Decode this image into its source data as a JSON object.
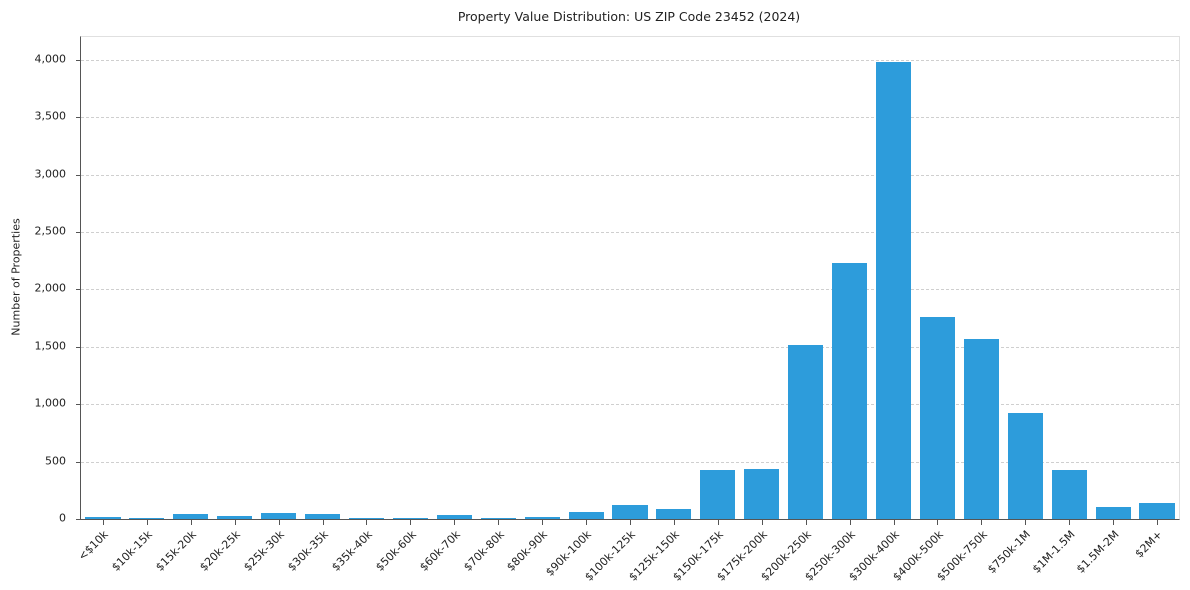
{
  "chart_data": {
    "type": "bar",
    "title": "Property Value Distribution: US ZIP Code 23452 (2024)",
    "xlabel": "",
    "ylabel": "Number of Properties",
    "categories": [
      "<$10k",
      "$10k-15k",
      "$15k-20k",
      "$20k-25k",
      "$25k-30k",
      "$30k-35k",
      "$35k-40k",
      "$50k-60k",
      "$60k-70k",
      "$70k-80k",
      "$80k-90k",
      "$90k-100k",
      "$100k-125k",
      "$125k-150k",
      "$150k-175k",
      "$175k-200k",
      "$200k-250k",
      "$250k-300k",
      "$300k-400k",
      "$400k-500k",
      "$500k-750k",
      "$750k-1M",
      "$1M-1.5M",
      "$1.5M-2M",
      "$2M+"
    ],
    "values": [
      15,
      8,
      40,
      30,
      50,
      48,
      8,
      10,
      35,
      8,
      18,
      60,
      120,
      85,
      430,
      440,
      1520,
      2230,
      3980,
      1760,
      1570,
      920,
      430,
      105,
      140
    ],
    "ylim": [
      0,
      4200
    ],
    "yticks": [
      0,
      500,
      1000,
      1500,
      2000,
      2500,
      3000,
      3500,
      4000
    ],
    "bar_color": "#2D9CDB",
    "grid": "horizontal-dashed",
    "legend": "none",
    "x_tick_rotation_deg": 45
  }
}
